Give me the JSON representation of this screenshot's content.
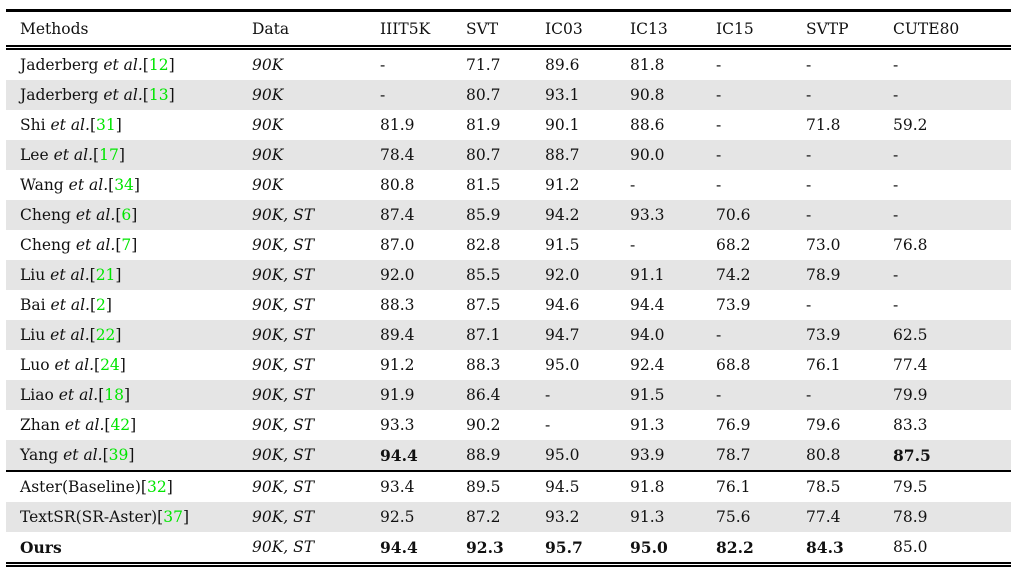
{
  "colors": {
    "citation_green": "#00e600",
    "stripe_gray": "#e5e5e5",
    "text": "#111111"
  },
  "table": {
    "columns": [
      "Methods",
      "Data",
      "IIIT5K",
      "SVT",
      "IC03",
      "IC13",
      "IC15",
      "SVTP",
      "CUTE80"
    ],
    "et_al_label": "et al.",
    "rows": [
      {
        "name": "Jaderberg",
        "etal": "et al.",
        "cite": "12",
        "data": "90K",
        "values": [
          "-",
          "71.7",
          "89.6",
          "81.8",
          "-",
          "-",
          "-"
        ],
        "bold_values": [],
        "bold_name": false,
        "section": 1
      },
      {
        "name": "Jaderberg",
        "etal": "et al.",
        "cite": "13",
        "data": "90K",
        "values": [
          "-",
          "80.7",
          "93.1",
          "90.8",
          "-",
          "-",
          "-"
        ],
        "bold_values": [],
        "bold_name": false,
        "section": 1
      },
      {
        "name": "Shi",
        "etal": "et al.",
        "cite": "31",
        "data": "90K",
        "values": [
          "81.9",
          "81.9",
          "90.1",
          "88.6",
          "-",
          "71.8",
          "59.2"
        ],
        "bold_values": [],
        "bold_name": false,
        "section": 1
      },
      {
        "name": "Lee",
        "etal": "et al.",
        "cite": "17",
        "data": "90K",
        "values": [
          "78.4",
          "80.7",
          "88.7",
          "90.0",
          "-",
          "-",
          "-"
        ],
        "bold_values": [],
        "bold_name": false,
        "section": 1
      },
      {
        "name": "Wang",
        "etal": "et al.",
        "cite": "34",
        "data": "90K",
        "values": [
          "80.8",
          "81.5",
          "91.2",
          "-",
          "-",
          "-",
          "-"
        ],
        "bold_values": [],
        "bold_name": false,
        "section": 1
      },
      {
        "name": "Cheng",
        "etal": "et al.",
        "cite": "6",
        "data": "90K, ST",
        "values": [
          "87.4",
          "85.9",
          "94.2",
          "93.3",
          "70.6",
          "-",
          "-"
        ],
        "bold_values": [],
        "bold_name": false,
        "section": 1
      },
      {
        "name": "Cheng",
        "etal": "et al.",
        "cite": "7",
        "data": "90K, ST",
        "values": [
          "87.0",
          "82.8",
          "91.5",
          "-",
          "68.2",
          "73.0",
          "76.8"
        ],
        "bold_values": [],
        "bold_name": false,
        "section": 1
      },
      {
        "name": "Liu",
        "etal": "et al.",
        "cite": "21",
        "data": "90K, ST",
        "values": [
          "92.0",
          "85.5",
          "92.0",
          "91.1",
          "74.2",
          "78.9",
          "-"
        ],
        "bold_values": [],
        "bold_name": false,
        "section": 1
      },
      {
        "name": "Bai",
        "etal": "et al.",
        "cite": "2",
        "data": "90K, ST",
        "values": [
          "88.3",
          "87.5",
          "94.6",
          "94.4",
          "73.9",
          "-",
          "-"
        ],
        "bold_values": [],
        "bold_name": false,
        "section": 1
      },
      {
        "name": "Liu",
        "etal": "et al.",
        "cite": "22",
        "data": "90K, ST",
        "values": [
          "89.4",
          "87.1",
          "94.7",
          "94.0",
          "-",
          "73.9",
          "62.5"
        ],
        "bold_values": [],
        "bold_name": false,
        "section": 1
      },
      {
        "name": "Luo",
        "etal": "et al.",
        "cite": "24",
        "data": "90K, ST",
        "values": [
          "91.2",
          "88.3",
          "95.0",
          "92.4",
          "68.8",
          "76.1",
          "77.4"
        ],
        "bold_values": [],
        "bold_name": false,
        "section": 1
      },
      {
        "name": "Liao",
        "etal": "et al.",
        "cite": "18",
        "data": "90K, ST",
        "values": [
          "91.9",
          "86.4",
          "-",
          "91.5",
          "-",
          "-",
          "79.9"
        ],
        "bold_values": [],
        "bold_name": false,
        "section": 1
      },
      {
        "name": "Zhan",
        "etal": "et al.",
        "cite": "42",
        "data": "90K, ST",
        "values": [
          "93.3",
          "90.2",
          "-",
          "91.3",
          "76.9",
          "79.6",
          "83.3"
        ],
        "bold_values": [],
        "bold_name": false,
        "section": 1
      },
      {
        "name": "Yang",
        "etal": "et al.",
        "cite": "39",
        "data": "90K, ST",
        "values": [
          "94.4",
          "88.9",
          "95.0",
          "93.9",
          "78.7",
          "80.8",
          "87.5"
        ],
        "bold_values": [
          0,
          6
        ],
        "bold_name": false,
        "section": 1
      },
      {
        "name": "Aster(Baseline)",
        "etal": "",
        "cite": "32",
        "data": "90K, ST",
        "values": [
          "93.4",
          "89.5",
          "94.5",
          "91.8",
          "76.1",
          "78.5",
          "79.5"
        ],
        "bold_values": [],
        "bold_name": false,
        "section": 2
      },
      {
        "name": "TextSR(SR-Aster)",
        "etal": "",
        "cite": "37",
        "data": "90K, ST",
        "values": [
          "92.5",
          "87.2",
          "93.2",
          "91.3",
          "75.6",
          "77.4",
          "78.9"
        ],
        "bold_values": [],
        "bold_name": false,
        "section": 2
      },
      {
        "name": "Ours",
        "etal": "",
        "cite": "",
        "data": "90K, ST",
        "values": [
          "94.4",
          "92.3",
          "95.7",
          "95.0",
          "82.2",
          "84.3",
          "85.0"
        ],
        "bold_values": [
          0,
          1,
          2,
          3,
          4,
          5
        ],
        "bold_name": true,
        "section": 2
      }
    ]
  }
}
